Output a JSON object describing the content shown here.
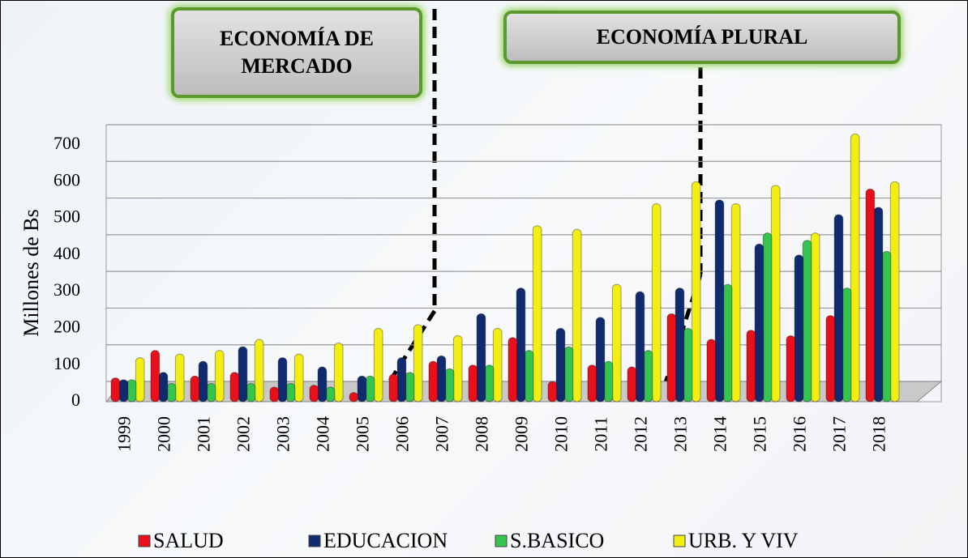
{
  "chart_data": {
    "type": "bar",
    "annotations": [
      "ECONOMÍA DE MERCADO",
      "ECONOMÍA PLURAL"
    ],
    "y_label": "Millones de Bs",
    "categories": [
      "1999",
      "2000",
      "2001",
      "2002",
      "2003",
      "2004",
      "2005",
      "2006",
      "2007",
      "2008",
      "2009",
      "2010",
      "2011",
      "2012",
      "2013",
      "2014",
      "2015",
      "2016",
      "2017",
      "2018"
    ],
    "series": [
      {
        "name": "SALUD",
        "color": "#e8101a",
        "values": [
          65,
          140,
          70,
          80,
          40,
          45,
          25,
          75,
          110,
          100,
          175,
          55,
          100,
          95,
          240,
          170,
          195,
          180,
          235,
          580
        ]
      },
      {
        "name": "EDUCACION",
        "color": "#0f2a6e",
        "values": [
          60,
          80,
          110,
          150,
          120,
          95,
          70,
          120,
          125,
          240,
          310,
          200,
          230,
          300,
          310,
          550,
          430,
          400,
          510,
          530
        ]
      },
      {
        "name": "S.BASICO",
        "color": "#35c44e",
        "values": [
          60,
          50,
          50,
          50,
          50,
          40,
          70,
          80,
          90,
          100,
          140,
          150,
          110,
          140,
          200,
          320,
          460,
          440,
          310,
          410
        ]
      },
      {
        "name": "URB. Y VIV",
        "color": "#f2ee12",
        "values": [
          120,
          130,
          140,
          170,
          130,
          160,
          200,
          210,
          180,
          200,
          480,
          470,
          320,
          540,
          600,
          540,
          590,
          460,
          730,
          600
        ]
      }
    ],
    "ylim": [
      0,
      700
    ],
    "yticks": [
      0,
      100,
      200,
      300,
      400,
      500,
      600,
      700
    ],
    "grid": true
  }
}
